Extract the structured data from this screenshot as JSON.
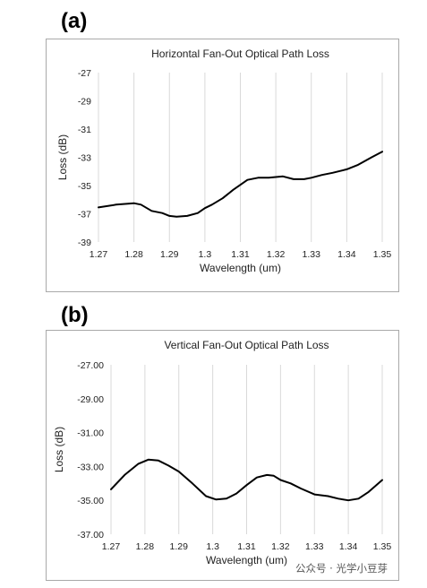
{
  "panels": {
    "a": {
      "label": "(a)"
    },
    "b": {
      "label": "(b)"
    }
  },
  "watermark": "公众号 · 光学小豆芽",
  "chart_data": [
    {
      "type": "line",
      "title": "Horizontal Fan-Out Optical Path Loss",
      "xlabel": "Wavelength (um)",
      "ylabel": "Loss (dB)",
      "xlim": [
        1.27,
        1.35
      ],
      "ylim": [
        -39,
        -27
      ],
      "xticks": [
        1.27,
        1.28,
        1.29,
        1.3,
        1.31,
        1.32,
        1.33,
        1.34,
        1.35
      ],
      "xtick_labels": [
        "1.27",
        "1.28",
        "1.29",
        "1.3",
        "1.31",
        "1.32",
        "1.33",
        "1.34",
        "1.35"
      ],
      "yticks": [
        -27,
        -29,
        -31,
        -33,
        -35,
        -37,
        -39
      ],
      "ytick_labels": [
        "-27",
        "-29",
        "-31",
        "-33",
        "-35",
        "-37",
        "-39"
      ],
      "grid": "vertical",
      "line_color": "#000000",
      "series": [
        {
          "x": [
            1.27,
            1.275,
            1.28,
            1.282,
            1.285,
            1.288,
            1.29,
            1.292,
            1.295,
            1.298,
            1.3,
            1.302,
            1.305,
            1.308,
            1.31,
            1.312,
            1.315,
            1.318,
            1.32,
            1.322,
            1.325,
            1.328,
            1.33,
            1.333,
            1.336,
            1.34,
            1.343,
            1.347,
            1.35
          ],
          "y": [
            -36.55,
            -36.35,
            -36.25,
            -36.35,
            -36.8,
            -36.95,
            -37.15,
            -37.2,
            -37.15,
            -36.95,
            -36.6,
            -36.35,
            -35.9,
            -35.3,
            -34.95,
            -34.6,
            -34.45,
            -34.45,
            -34.4,
            -34.35,
            -34.55,
            -34.55,
            -34.45,
            -34.25,
            -34.1,
            -33.85,
            -33.55,
            -33.0,
            -32.6
          ]
        }
      ]
    },
    {
      "type": "line",
      "title": "Vertical Fan-Out Optical Path Loss",
      "xlabel": "Wavelength (um)",
      "ylabel": "Loss (dB)",
      "xlim": [
        1.27,
        1.35
      ],
      "ylim": [
        -37,
        -27
      ],
      "xticks": [
        1.27,
        1.28,
        1.29,
        1.3,
        1.31,
        1.32,
        1.33,
        1.34,
        1.35
      ],
      "xtick_labels": [
        "1.27",
        "1.28",
        "1.29",
        "1.3",
        "1.31",
        "1.32",
        "1.33",
        "1.34",
        "1.35"
      ],
      "yticks": [
        -27,
        -29,
        -31,
        -33,
        -35,
        -37
      ],
      "ytick_labels": [
        "-27.00",
        "-29.00",
        "-31.00",
        "-33.00",
        "-35.00",
        "-37.00"
      ],
      "grid": "vertical",
      "line_color": "#000000",
      "series": [
        {
          "x": [
            1.27,
            1.274,
            1.278,
            1.281,
            1.284,
            1.287,
            1.29,
            1.294,
            1.298,
            1.301,
            1.304,
            1.307,
            1.31,
            1.313,
            1.316,
            1.318,
            1.32,
            1.323,
            1.326,
            1.33,
            1.334,
            1.337,
            1.34,
            1.343,
            1.346,
            1.35
          ],
          "y": [
            -34.35,
            -33.5,
            -32.85,
            -32.6,
            -32.65,
            -32.95,
            -33.3,
            -34.0,
            -34.75,
            -34.95,
            -34.9,
            -34.6,
            -34.1,
            -33.65,
            -33.5,
            -33.55,
            -33.8,
            -34.0,
            -34.3,
            -34.65,
            -34.75,
            -34.9,
            -35.0,
            -34.9,
            -34.5,
            -33.8
          ]
        }
      ]
    }
  ]
}
